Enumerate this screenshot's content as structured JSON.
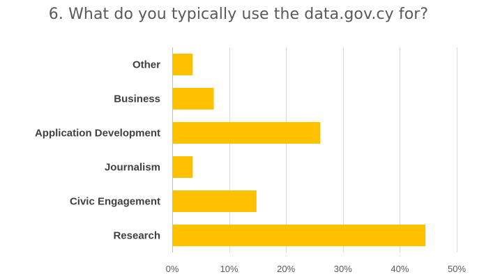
{
  "chart_data": {
    "type": "bar",
    "orientation": "horizontal",
    "title": "6. What do you typically use the data.gov.cy for?",
    "categories": [
      "Other",
      "Business",
      "Application Development",
      "Journalism",
      "Civic Engagement",
      "Research"
    ],
    "values": [
      3.6,
      7.3,
      26.0,
      3.6,
      14.8,
      44.5
    ],
    "value_unit": "%",
    "xlim": [
      0,
      50
    ],
    "x_ticks": [
      "0%",
      "10%",
      "20%",
      "30%",
      "40%",
      "50%"
    ],
    "grid": true,
    "legend": "none",
    "bar_color": "#FFC000"
  }
}
